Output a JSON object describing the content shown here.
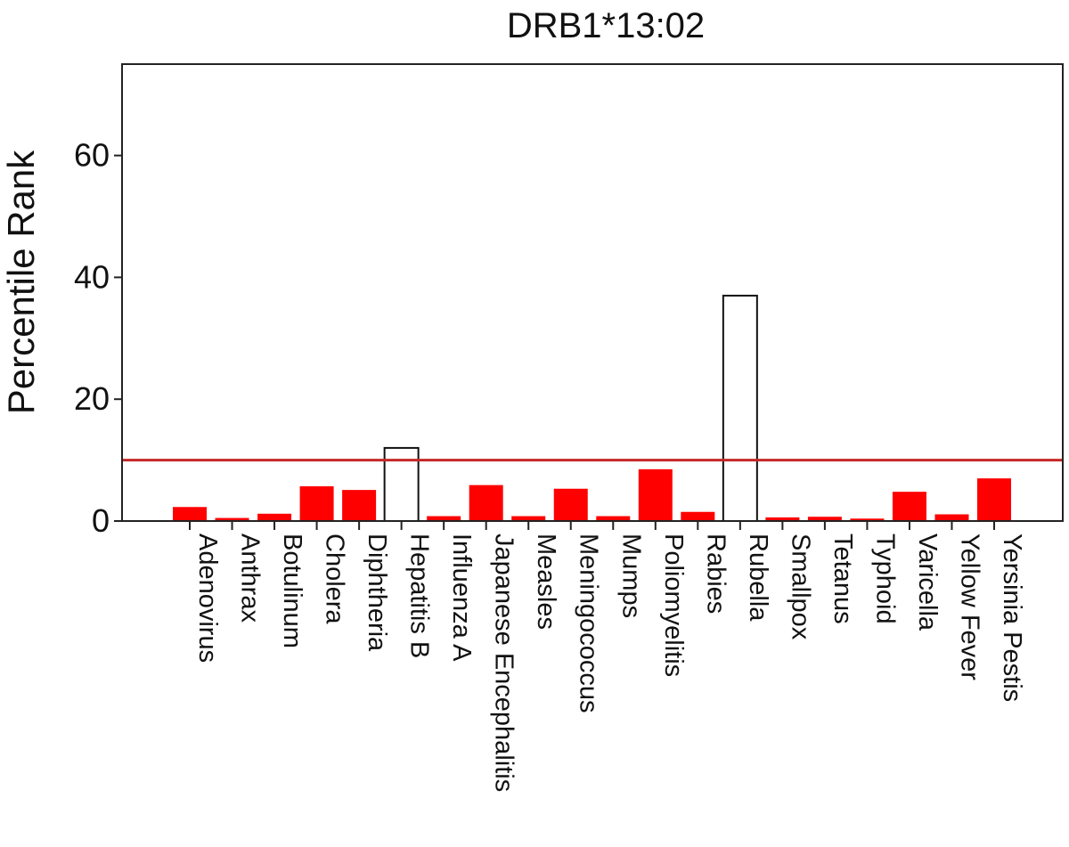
{
  "chart_data": {
    "type": "bar",
    "title": "DRB1*13:02",
    "xlabel": "",
    "ylabel": "Percentile Rank",
    "ylim": [
      0,
      75
    ],
    "yticks": [
      0,
      20,
      40,
      60
    ],
    "grid": false,
    "legend": "none",
    "categories": [
      "Adenovirus",
      "Anthrax",
      "Botulinum",
      "Cholera",
      "Diphtheria",
      "Hepatitis B",
      "Influenza A",
      "Japanese Encephalitis",
      "Measles",
      "Meningococcus",
      "Mumps",
      "Poliomyelitis",
      "Rabies",
      "Rubella",
      "Smallpox",
      "Tetanus",
      "Typhoid",
      "Varicella",
      "Yellow Fever",
      "Yersinia Pestis"
    ],
    "values": [
      2.3,
      0.5,
      1.2,
      5.7,
      5.1,
      12.0,
      0.8,
      5.9,
      0.8,
      5.3,
      0.8,
      8.5,
      1.5,
      37.0,
      0.6,
      0.7,
      0.4,
      4.8,
      1.1,
      7.0
    ],
    "threshold": 10,
    "threshold_color": "#c62828",
    "colors": {
      "below_threshold": "#ff0000",
      "above_threshold": "#ffffff",
      "outline": "#111111"
    }
  }
}
